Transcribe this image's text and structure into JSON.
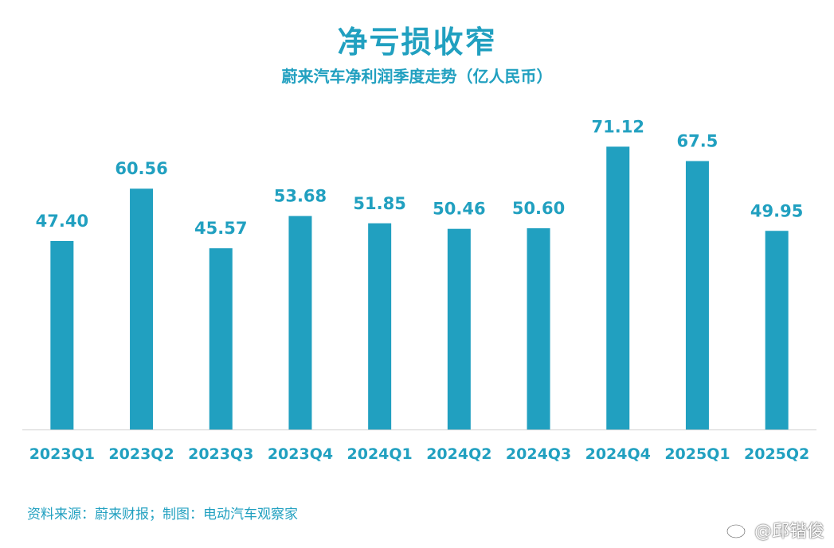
{
  "chart_data": {
    "type": "bar",
    "title": "净亏损收窄",
    "subtitle": "蔚来汽车净利润季度走势（亿人民币）",
    "categories": [
      "2023Q1",
      "2023Q2",
      "2023Q3",
      "2023Q4",
      "2024Q1",
      "2024Q2",
      "2024Q3",
      "2024Q4",
      "2025Q1",
      "2025Q2"
    ],
    "values": [
      47.4,
      60.56,
      45.57,
      53.68,
      51.85,
      50.46,
      50.6,
      71.12,
      67.5,
      49.95
    ],
    "value_labels": [
      "47.40",
      "60.56",
      "45.57",
      "53.68",
      "51.85",
      "50.46",
      "50.60",
      "71.12",
      "67.5",
      "49.95"
    ],
    "ylim": [
      0,
      80
    ],
    "grid": false,
    "legend": "none",
    "bar_color": "#21a0c0",
    "label_color": "#21a0c0",
    "axis_color": "#d0d0d0"
  },
  "footer": {
    "source": "资料来源：蔚来财报；制图：电动汽车观察家"
  },
  "watermark": {
    "text": "@邱锴俊",
    "icon": "weibo-icon"
  }
}
